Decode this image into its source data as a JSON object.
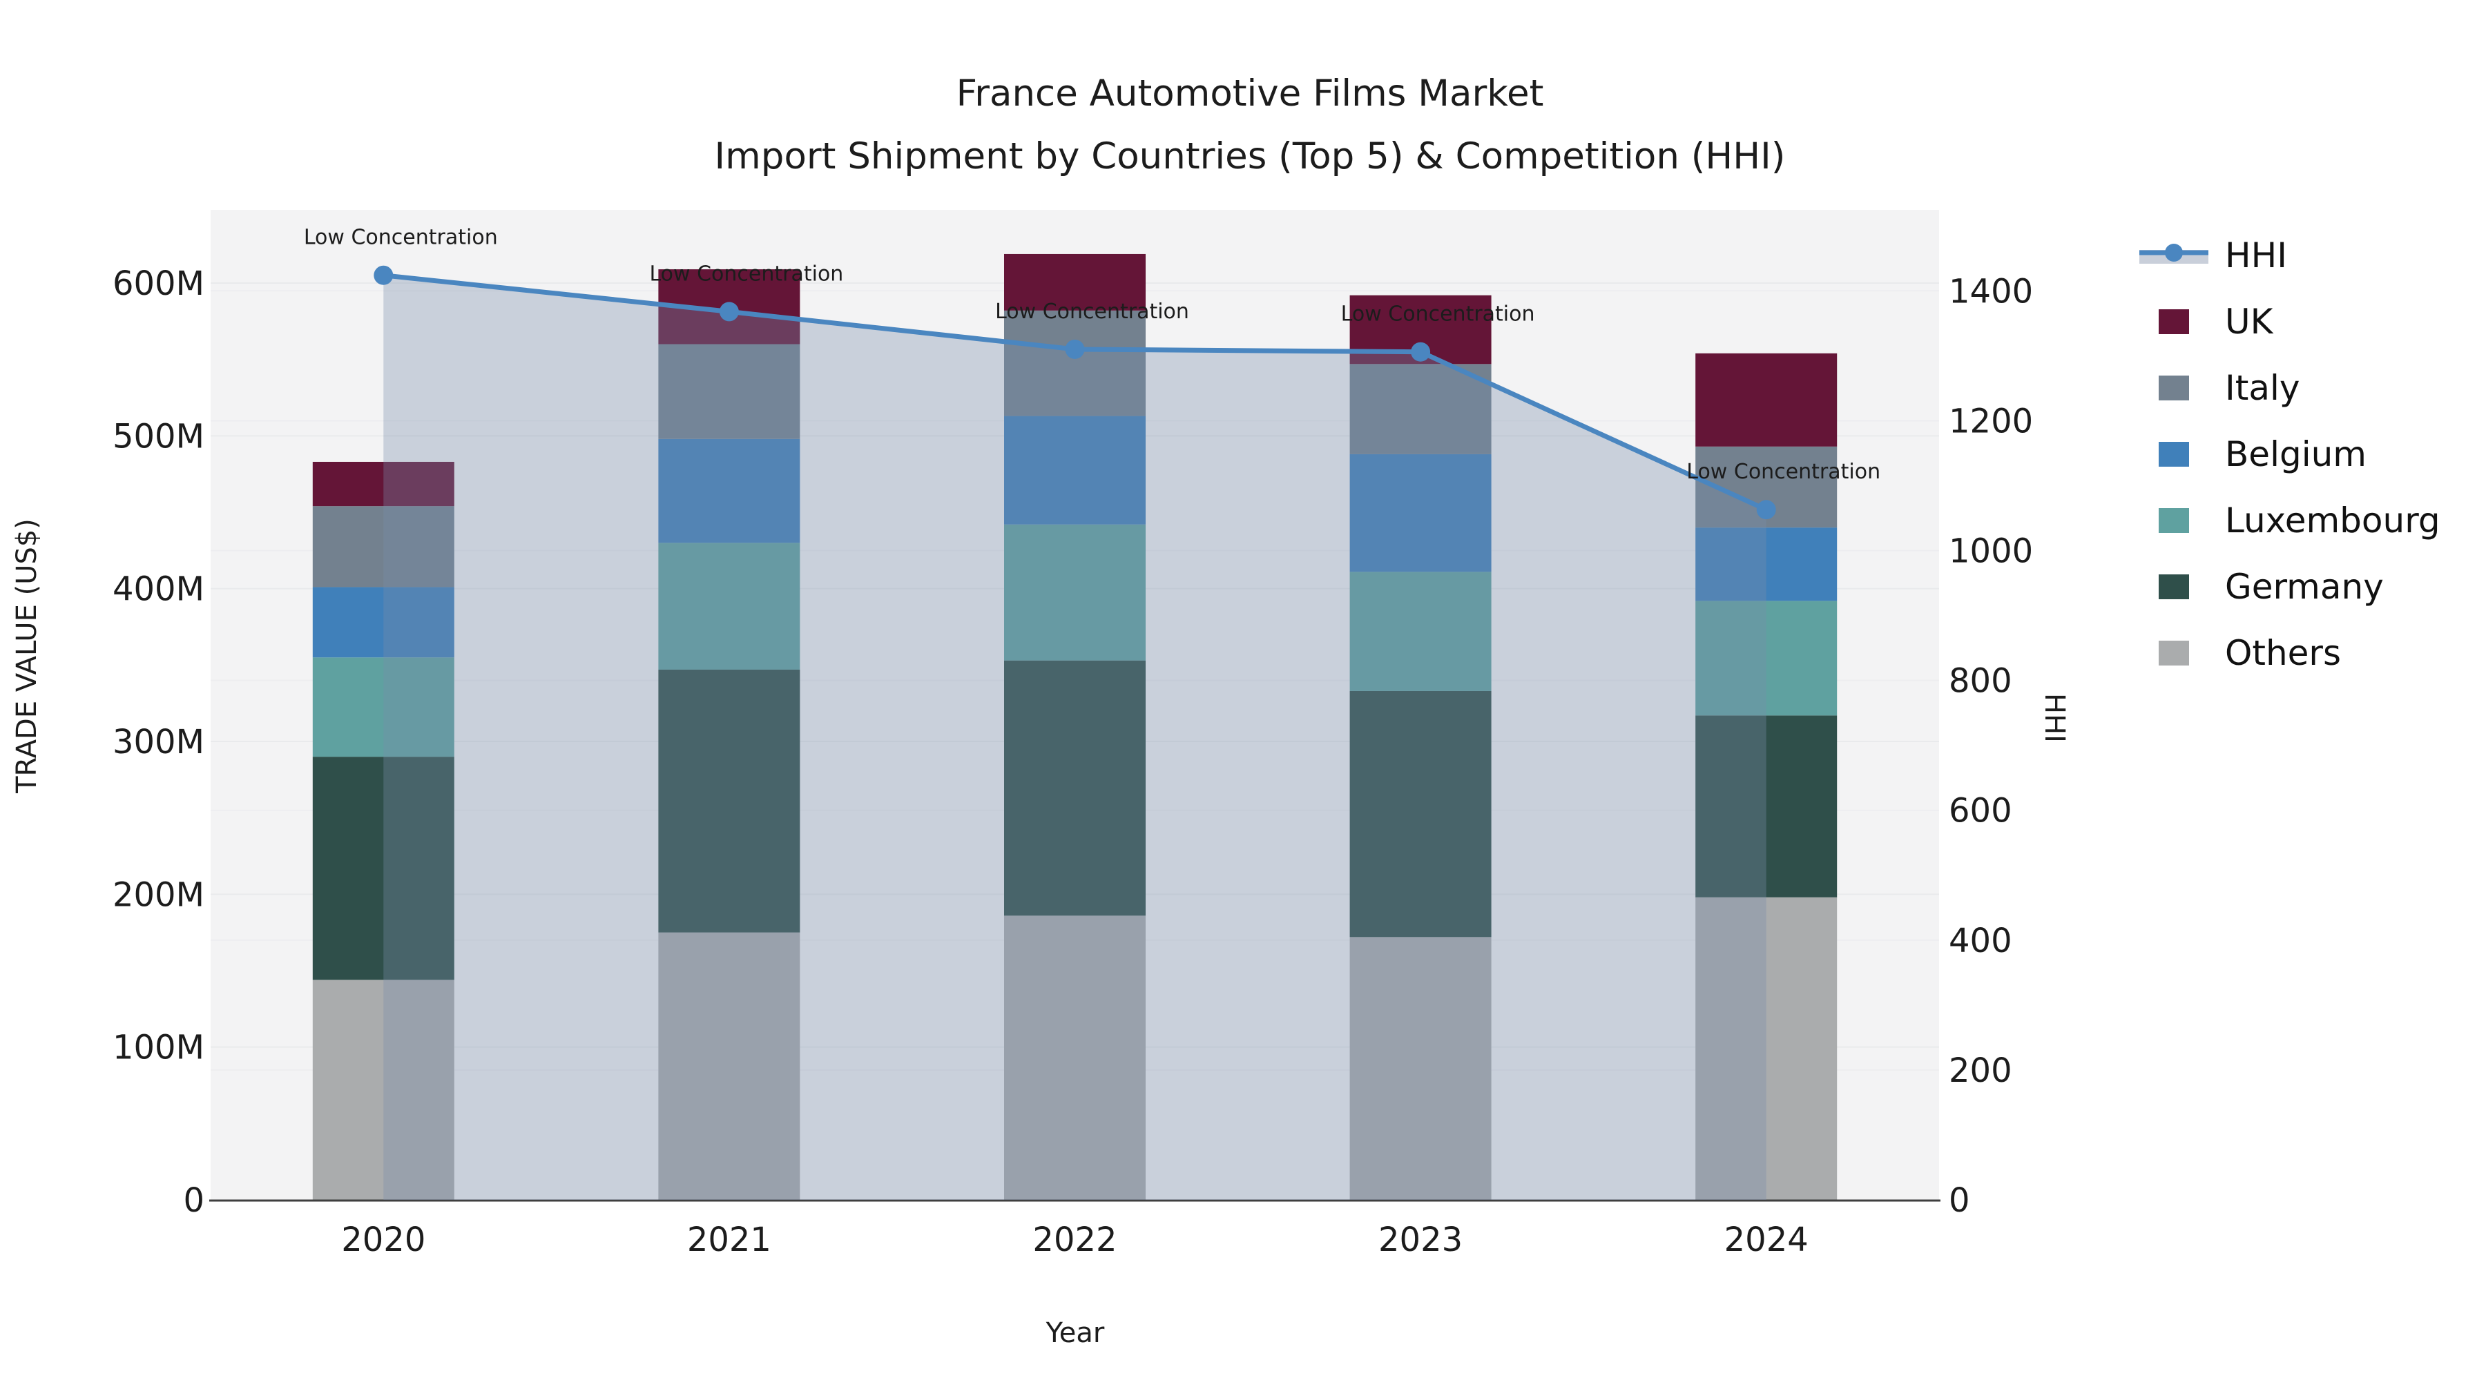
{
  "title": {
    "line1": "France Automotive Films Market",
    "line2": "Import Shipment by Countries (Top 5) & Competition (HHI)"
  },
  "chart_data": {
    "type": "bar+line",
    "stacked": true,
    "categories": [
      "2020",
      "2021",
      "2022",
      "2023",
      "2024"
    ],
    "x_title": "Year",
    "y_left": {
      "title": "TRADE VALUE (US$)",
      "ticks": [
        0,
        100,
        200,
        300,
        400,
        500,
        600
      ],
      "tick_labels": [
        "0",
        "100M",
        "200M",
        "300M",
        "400M",
        "500M",
        "600M"
      ],
      "unit": "M US$",
      "max": 648
    },
    "y_right": {
      "title": "HHI",
      "ticks": [
        0,
        200,
        400,
        600,
        800,
        1000,
        1200,
        1400
      ],
      "tick_labels": [
        "0",
        "200",
        "400",
        "600",
        "800",
        "1000",
        "1200",
        "1400"
      ],
      "max": 1525
    },
    "series": [
      {
        "name": "Others",
        "color": "#aaacad",
        "values": [
          144,
          175,
          186,
          172,
          198
        ]
      },
      {
        "name": "Germany",
        "color": "#2f4f4a",
        "values": [
          146,
          172,
          167,
          161,
          119
        ]
      },
      {
        "name": "Luxembourg",
        "color": "#5fa1a0",
        "values": [
          65,
          83,
          89,
          78,
          75
        ]
      },
      {
        "name": "Belgium",
        "color": "#4080ba",
        "values": [
          46,
          68,
          71,
          77,
          48
        ]
      },
      {
        "name": "Italy",
        "color": "#73818f",
        "values": [
          53,
          62,
          69,
          59,
          53
        ]
      },
      {
        "name": "UK",
        "color": "#641537",
        "values": [
          29,
          49,
          37,
          45,
          61
        ]
      }
    ],
    "line_series": {
      "name": "HHI",
      "axis": "right",
      "color": "#4a86c0",
      "area_fill": "rgba(120,140,170,0.34)",
      "values": [
        1424,
        1368,
        1310,
        1306,
        1063
      ]
    },
    "annotations": [
      "Low Concentration",
      "Low Concentration",
      "Low Concentration",
      "Low Concentration",
      "Low Concentration"
    ],
    "grid": true,
    "plot_bg": "#f3f3f4",
    "grid_color_left": "#e9eaec",
    "grid_color_right": "#ededf0",
    "axis_line_color": "#3f3f3f"
  },
  "legend": {
    "items": [
      {
        "label": "HHI",
        "color": "#4a86c0",
        "band_color": "#c9cfda"
      },
      {
        "label": "UK",
        "color": "#641537"
      },
      {
        "label": "Italy",
        "color": "#73818f"
      },
      {
        "label": "Belgium",
        "color": "#4080ba"
      },
      {
        "label": "Luxembourg",
        "color": "#5fa1a0"
      },
      {
        "label": "Germany",
        "color": "#2f4f4a"
      },
      {
        "label": "Others",
        "color": "#aaacad"
      }
    ]
  }
}
